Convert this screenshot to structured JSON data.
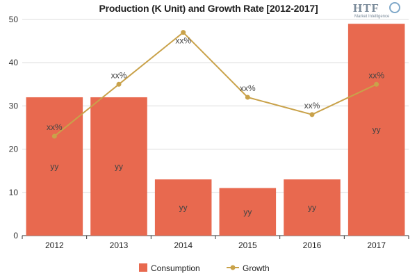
{
  "logo": {
    "main": "HTF",
    "sub": "Market Intelligence"
  },
  "chart_data": {
    "type": "bar",
    "title": "Production (K Unit) and Growth Rate [2012-2017]",
    "categories": [
      "2012",
      "2013",
      "2014",
      "2015",
      "2016",
      "2017"
    ],
    "ylim": [
      0,
      50
    ],
    "yticks": [
      0,
      10,
      20,
      30,
      40,
      50
    ],
    "grid": true,
    "legend_position": "bottom",
    "series": [
      {
        "name": "Consumption",
        "type": "bar",
        "color": "#e8694f",
        "values": [
          32,
          32,
          13,
          11,
          13,
          49
        ],
        "labels": [
          "yy",
          "yy",
          "yy",
          "yy",
          "yy",
          "yy"
        ]
      },
      {
        "name": "Growth",
        "type": "line",
        "color": "#c9a24a",
        "values": [
          23,
          35,
          47,
          32,
          28,
          35
        ],
        "labels": [
          "xx%",
          "xx%",
          "xx%",
          "xx%",
          "xx%",
          "xx%"
        ]
      }
    ]
  }
}
